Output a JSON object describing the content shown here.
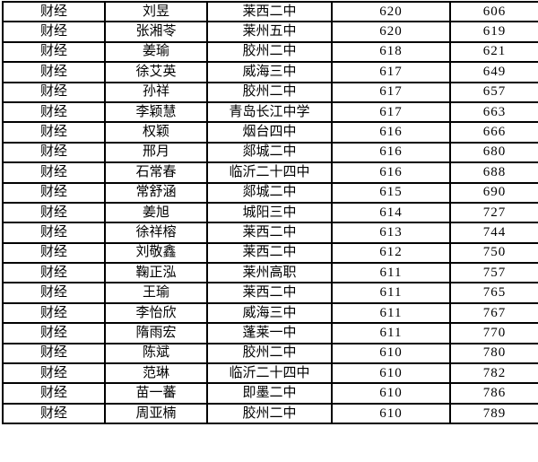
{
  "table": {
    "columns": [
      "category",
      "student-name",
      "school",
      "score",
      "rank"
    ],
    "rows": [
      [
        "财经",
        "刘昱",
        "莱西二中",
        "620",
        "606"
      ],
      [
        "财经",
        "张湘苓",
        "莱州五中",
        "620",
        "619"
      ],
      [
        "财经",
        "姜瑜",
        "胶州二中",
        "618",
        "621"
      ],
      [
        "财经",
        "徐艾英",
        "威海三中",
        "617",
        "649"
      ],
      [
        "财经",
        "孙祥",
        "胶州二中",
        "617",
        "657"
      ],
      [
        "财经",
        "李颖慧",
        "青岛长江中学",
        "617",
        "663"
      ],
      [
        "财经",
        "权颖",
        "烟台四中",
        "616",
        "666"
      ],
      [
        "财经",
        "邢月",
        "郯城二中",
        "616",
        "680"
      ],
      [
        "财经",
        "石常春",
        "临沂二十四中",
        "616",
        "688"
      ],
      [
        "财经",
        "常舒涵",
        "郯城二中",
        "615",
        "690"
      ],
      [
        "财经",
        "姜旭",
        "城阳三中",
        "614",
        "727"
      ],
      [
        "财经",
        "徐祥榕",
        "莱西二中",
        "613",
        "744"
      ],
      [
        "财经",
        "刘敬鑫",
        "莱西二中",
        "612",
        "750"
      ],
      [
        "财经",
        "鞠正泓",
        "莱州高职",
        "611",
        "757"
      ],
      [
        "财经",
        "王瑜",
        "莱西二中",
        "611",
        "765"
      ],
      [
        "财经",
        "李怡欣",
        "威海三中",
        "611",
        "767"
      ],
      [
        "财经",
        "隋雨宏",
        "蓬莱一中",
        "611",
        "770"
      ],
      [
        "财经",
        "陈斌",
        "胶州二中",
        "610",
        "780"
      ],
      [
        "财经",
        "范琳",
        "临沂二十四中",
        "610",
        "782"
      ],
      [
        "财经",
        "苗一蕃",
        "即墨二中",
        "610",
        "786"
      ],
      [
        "财经",
        "周亚楠",
        "胶州二中",
        "610",
        "789"
      ]
    ]
  },
  "colors": {
    "border": "#000000",
    "background": "#ffffff",
    "text": "#000000"
  }
}
